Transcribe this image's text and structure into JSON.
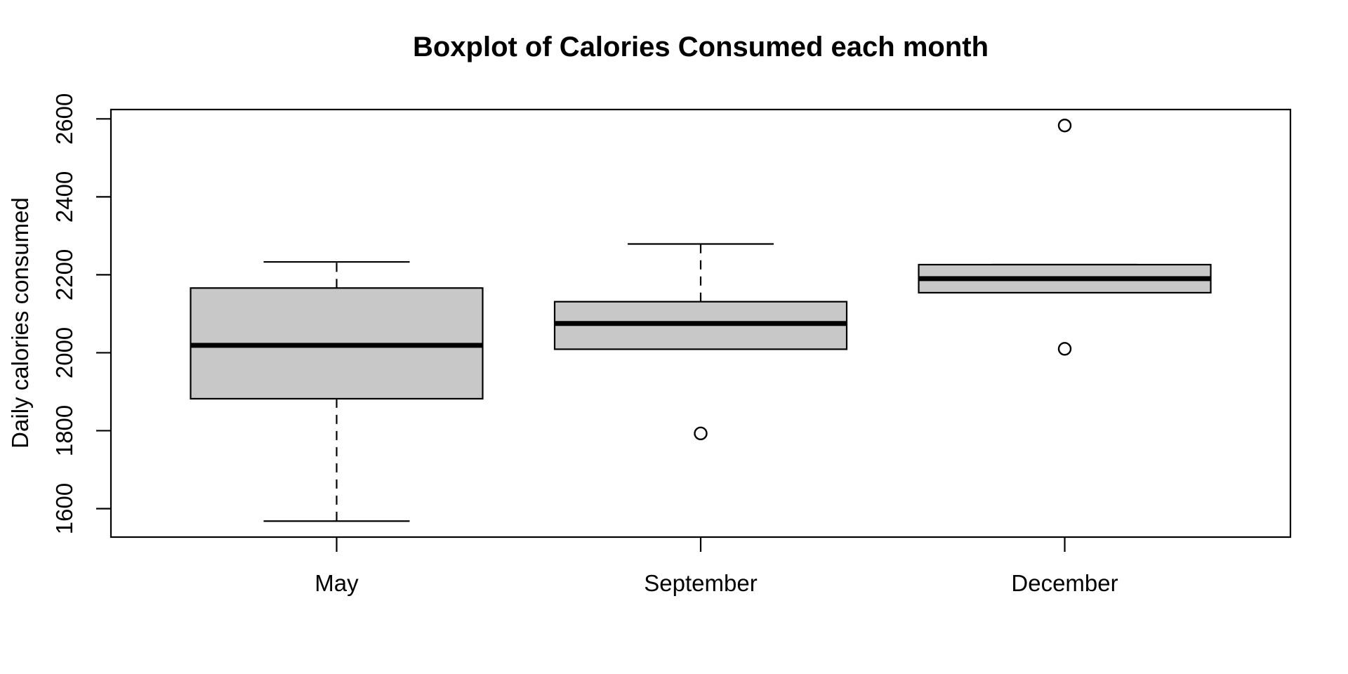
{
  "chart_data": {
    "type": "boxplot",
    "title": "Boxplot of Calories Consumed each month",
    "xlabel": "",
    "ylabel": "Daily calories consumed",
    "categories": [
      "May",
      "September",
      "December"
    ],
    "y_ticks": [
      1600,
      1800,
      2000,
      2200,
      2400,
      2600
    ],
    "ylim": [
      1527,
      2624
    ],
    "xlim": [
      0.38,
      3.62
    ],
    "grid": false,
    "legend": false,
    "orientation": "vertical",
    "groups": [
      {
        "label": "May",
        "x": 1,
        "min": 1568,
        "q1": 1882,
        "median": 2019,
        "q3": 2166,
        "max": 2233,
        "whisker_low": 1568,
        "whisker_high": 2233,
        "outliers": []
      },
      {
        "label": "September",
        "x": 2,
        "min": 1793,
        "q1": 2009,
        "median": 2075,
        "q3": 2131,
        "max": 2279,
        "whisker_low": 2009,
        "whisker_high": 2279,
        "outliers": [
          1793
        ]
      },
      {
        "label": "December",
        "x": 3,
        "min": 2010,
        "q1": 2154,
        "median": 2190,
        "q3": 2226,
        "max": 2583,
        "whisker_low": 2154,
        "whisker_high": 2226,
        "outliers": [
          2583,
          2010
        ]
      }
    ]
  },
  "colors": {
    "background": "#ffffff",
    "box_fill": "#c8c8c8",
    "stroke": "#000000"
  }
}
